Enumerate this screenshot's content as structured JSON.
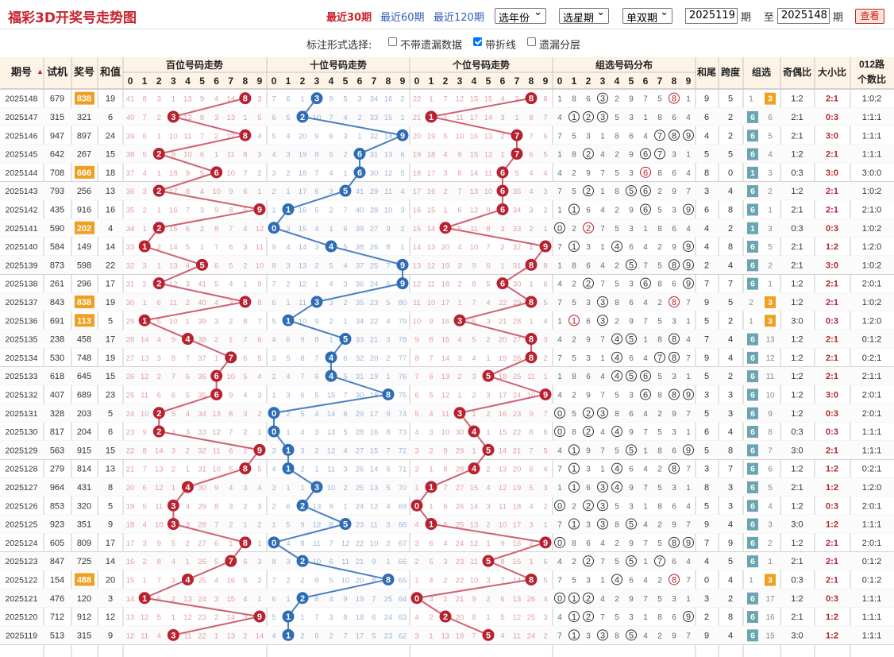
{
  "title": "福彩3D开奖号走势图",
  "quick": {
    "p30": "最近30期",
    "p60": "最近60期",
    "p120": "最近120期"
  },
  "filters": {
    "year": "选年份",
    "week": "选星期",
    "oddeven": "单双期",
    "from": "2025119",
    "to": "2025148",
    "qi": "期",
    "zhi": "至",
    "view": "查看"
  },
  "options": {
    "label": "标注形式选择:",
    "items": [
      {
        "text": "不带遗漏数据",
        "checked": false
      },
      {
        "text": "带折线",
        "checked": true
      },
      {
        "text": "遗漏分层",
        "checked": false
      }
    ]
  },
  "headers": {
    "qihao": "期号",
    "shiji": "试机",
    "jianghao": "奖号",
    "hezhi": "和值",
    "bai": "百位号码走势",
    "shi": "十位号码走势",
    "ge": "个位号码走势",
    "zuxuan": "组选号码分布",
    "hewei": "和尾",
    "kuadu": "跨度",
    "zuxuan2": "组选",
    "jiou": "奇偶比",
    "daxiao": "大小比",
    "lu": "012路",
    "lu2": "个数比"
  },
  "digits": [
    "0",
    "1",
    "2",
    "3",
    "4",
    "5",
    "6",
    "7",
    "8",
    "9"
  ],
  "colors": {
    "red": "#b8212f",
    "blue": "#2e6cb5",
    "teal": "#6aa6b0",
    "orange": "#f0a020",
    "redline": "#d06070",
    "blueline": "#4a7fc0"
  },
  "rows": [
    {
      "q": "2025148",
      "s": "679",
      "n": "838",
      "sum": "19",
      "hw": "9",
      "kd": "5",
      "zt": "3",
      "zs": "1",
      "jo": "1:2",
      "dx": "2:1",
      "lu": "1:0:2",
      "miss": "41 8 3 1 13 9 4 14 - 3|7 6 1 - 9 5 3 34 16 2|22 1 7 12 15 15 4 2 - 8"
    },
    {
      "q": "2025147",
      "s": "315",
      "n": "321",
      "sum": "6",
      "hw": "6",
      "kd": "2",
      "zt": "6",
      "zs": "6",
      "jo": "2:1",
      "dx": "0:3",
      "lu": "1:1:1",
      "miss": "40 7 2 - 12 8 3 13 1 5|6 5 - 10 7 4 2 33 15 1|21 - 1 11 17 14 3 1 8 7"
    },
    {
      "q": "2025146",
      "s": "947",
      "n": "897",
      "sum": "24",
      "hw": "4",
      "kd": "2",
      "zt": "6",
      "zs": "5",
      "jo": "2:1",
      "dx": "3:0",
      "lu": "1:1:1",
      "miss": "39 6 1 10 11 7 2 12 - 4|5 4 20 9 6 3 1 32 14 -|20 19 5 10 16 13 2 - 7 6"
    },
    {
      "q": "2025145",
      "s": "642",
      "n": "267",
      "sum": "15",
      "hw": "5",
      "kd": "5",
      "zt": "6",
      "zs": "4",
      "jo": "1:2",
      "dx": "2:1",
      "lu": "1:1:1",
      "miss": "38 5 - 9 10 6 1 11 8 3|4 3 19 8 5 2 - 31 13 6|19 18 4 9 15 12 1 - 6 5"
    },
    {
      "q": "2025144",
      "s": "708",
      "n": "666",
      "sum": "18",
      "hw": "8",
      "kd": "0",
      "zt": "1",
      "zs": "3",
      "jo": "0:3",
      "dx": "3:0",
      "lu": "3:0:0",
      "miss": "37 4 1 18 9 5 - 10 7 2|3 2 18 7 4 1 - 30 12 5|18 17 3 8 14 11 - 5 4 4"
    },
    {
      "q": "2025143",
      "s": "793",
      "n": "256",
      "sum": "13",
      "hw": "3",
      "kd": "4",
      "zt": "6",
      "zs": "2",
      "jo": "1:2",
      "dx": "2:1",
      "lu": "1:0:2",
      "miss": "36 3 - 17 8 4 10 9 6 1|2 1 17 6 3 - 41 29 11 4|17 16 2 7 13 10 - 35 4 3"
    },
    {
      "q": "2025142",
      "s": "435",
      "n": "916",
      "sum": "16",
      "hw": "6",
      "kd": "8",
      "zt": "6",
      "zs": "1",
      "jo": "2:1",
      "dx": "2:1",
      "lu": "2:1:0",
      "miss": "35 2 1 16 7 3 9 8 5 -|1 - 16 5 2 7 40 28 10 3|16 15 1 6 12 9 - 34 3 2"
    },
    {
      "q": "2025141",
      "s": "590",
      "n": "202",
      "sum": "4",
      "hw": "4",
      "kd": "2",
      "zt": "1",
      "zs": "3",
      "jo": "0:3",
      "dx": "0:3",
      "lu": "1:0:2",
      "miss": "34 1 - 15 6 2 8 7 4 12|- 3 15 4 1 6 39 27 9 2|15 14 - 5 11 8 3 33 2 1"
    },
    {
      "q": "2025140",
      "s": "584",
      "n": "149",
      "sum": "14",
      "hw": "4",
      "kd": "8",
      "zt": "6",
      "zs": "5",
      "jo": "2:1",
      "dx": "1:2",
      "lu": "1:2:0",
      "miss": "33 - 2 14 5 1 7 6 3 11|9 4 14 3 - 5 38 26 8 1|14 13 20 4 10 7 2 32 1 -"
    },
    {
      "q": "2025139",
      "s": "873",
      "n": "598",
      "sum": "22",
      "hw": "2",
      "kd": "4",
      "zt": "6",
      "zs": "2",
      "jo": "2:1",
      "dx": "3:0",
      "lu": "1:0:2",
      "miss": "32 3 1 13 4 - 6 5 2 10|8 3 13 2 5 4 37 25 7 -|13 12 19 3 9 6 1 31 - 8"
    },
    {
      "q": "2025138",
      "s": "261",
      "n": "296",
      "sum": "17",
      "hw": "7",
      "kd": "7",
      "zt": "6",
      "zs": "1",
      "jo": "1:2",
      "dx": "2:1",
      "lu": "2:0:1",
      "miss": "31 2 - 12 3 41 5 4 1 9|7 2 12 1 4 3 36 24 6 -|12 11 18 2 8 5 - 30 1 6"
    },
    {
      "q": "2025137",
      "s": "843",
      "n": "838",
      "sum": "19",
      "hw": "9",
      "kd": "5",
      "zt": "3",
      "zs": "2",
      "jo": "1:2",
      "dx": "2:1",
      "lu": "1:0:2",
      "miss": "30 1 6 11 2 40 4 3 - 8|6 1 11 - 3 2 35 23 5 80|11 10 17 1 7 4 22 29 - 5"
    },
    {
      "q": "2025136",
      "s": "691",
      "n": "113",
      "sum": "5",
      "hw": "5",
      "kd": "2",
      "zt": "3",
      "zs": "1",
      "jo": "3:0",
      "dx": "0:3",
      "lu": "1:2:0",
      "miss": "29 - 5 10 1 39 3 2 8 7|5 - 10 9 2 1 34 22 4 79|10 9 16 - 6 3 21 28 1 4"
    },
    {
      "q": "2025135",
      "s": "238",
      "n": "458",
      "sum": "17",
      "hw": "7",
      "kd": "4",
      "zt": "6",
      "zs": "13",
      "jo": "1:2",
      "dx": "2:1",
      "lu": "0:1:2",
      "miss": "28 14 4 9 - 38 2 1 7 6|4 6 9 8 1 - 33 21 3 78|9 8 15 4 5 2 20 27 - 3"
    },
    {
      "q": "2025134",
      "s": "530",
      "n": "748",
      "sum": "19",
      "hw": "9",
      "kd": "4",
      "zt": "6",
      "zs": "12",
      "jo": "1:2",
      "dx": "2:1",
      "lu": "0:2:1",
      "miss": "27 13 3 8 7 37 1 - 6 5|3 5 8 7 - 6 32 20 2 77|8 7 14 3 4 1 19 26 - 2"
    },
    {
      "q": "2025133",
      "s": "618",
      "n": "645",
      "sum": "15",
      "hw": "5",
      "kd": "2",
      "zt": "6",
      "zs": "11",
      "jo": "1:2",
      "dx": "2:1",
      "lu": "2:1:1",
      "miss": "26 12 2 7 6 36 - 10 5 4|2 4 7 6 - 5 31 19 1 76|7 6 13 2 3 - 18 25 11 1"
    },
    {
      "q": "2025132",
      "s": "407",
      "n": "689",
      "sum": "23",
      "hw": "3",
      "kd": "3",
      "zt": "6",
      "zs": "10",
      "jo": "1:2",
      "dx": "3:0",
      "lu": "2:0:1",
      "miss": "25 11 6 6 5 35 - 9 4 3|1 3 6 5 15 7 30 18 - 75|6 5 12 1 2 3 17 24 10 -"
    },
    {
      "q": "2025131",
      "s": "328",
      "n": "203",
      "sum": "5",
      "hw": "5",
      "kd": "3",
      "zt": "6",
      "zs": "9",
      "jo": "1:2",
      "dx": "0:3",
      "lu": "2:0:1",
      "miss": "24 10 - 5 4 34 13 8 3 2|- 2 5 4 14 6 29 17 9 74|5 4 11 - 1 2 16 23 9 7"
    },
    {
      "q": "2025130",
      "s": "817",
      "n": "204",
      "sum": "6",
      "hw": "6",
      "kd": "4",
      "zt": "6",
      "zs": "8",
      "jo": "0:3",
      "dx": "0:3",
      "lu": "1:1:1",
      "miss": "23 9 - 4 3 33 12 7 2 1|- 1 4 3 13 5 28 16 8 73|4 3 10 30 - 1 15 22 8 6"
    },
    {
      "q": "2025129",
      "s": "563",
      "n": "915",
      "sum": "15",
      "hw": "5",
      "kd": "8",
      "zt": "6",
      "zs": "7",
      "jo": "3:0",
      "dx": "2:1",
      "lu": "1:1:1",
      "miss": "22 8 14 3 2 32 11 6 1 -|3 - 3 2 12 4 27 15 7 72|3 2 9 29 1 - 14 21 7 5"
    },
    {
      "q": "2025128",
      "s": "279",
      "n": "814",
      "sum": "13",
      "hw": "3",
      "kd": "7",
      "zt": "6",
      "zs": "6",
      "jo": "1:2",
      "dx": "1:2",
      "lu": "0:2:1",
      "miss": "21 7 13 2 1 31 10 5 - 5|4 - 2 1 11 3 26 14 6 71|2 1 8 28 - 2 13 20 6 4"
    },
    {
      "q": "2025127",
      "s": "964",
      "n": "431",
      "sum": "8",
      "hw": "8",
      "kd": "3",
      "zt": "6",
      "zs": "5",
      "jo": "2:1",
      "dx": "1:2",
      "lu": "1:2:0",
      "miss": "20 6 12 1 - 30 9 4 3 4|3 1 1 - 10 2 25 13 5 70|1 - 7 27 15 4 12 19 5 3"
    },
    {
      "q": "2025126",
      "s": "853",
      "n": "320",
      "sum": "5",
      "hw": "5",
      "kd": "3",
      "zt": "6",
      "zs": "4",
      "jo": "1:2",
      "dx": "0:3",
      "lu": "2:0:1",
      "miss": "19 5 11 - 4 29 8 3 2 3|2 6 - 13 9 1 24 12 4 69|- 1 6 26 14 3 11 18 4 2"
    },
    {
      "q": "2025125",
      "s": "923",
      "n": "351",
      "sum": "9",
      "hw": "9",
      "kd": "4",
      "zt": "6",
      "zs": "3",
      "jo": "3:0",
      "dx": "1:2",
      "lu": "1:1:1",
      "miss": "18 4 10 - 3 28 7 2 1 2|1 5 9 12 8 - 23 11 3 68|4 - 5 25 13 2 10 17 3 1"
    },
    {
      "q": "2025124",
      "s": "605",
      "n": "809",
      "sum": "17",
      "hw": "7",
      "kd": "9",
      "zt": "6",
      "zs": "2",
      "jo": "1:2",
      "dx": "2:1",
      "lu": "2:0:1",
      "miss": "17 3 9 5 2 27 6 1 - 1|- 4 8 11 7 12 22 10 2 67|3 6 4 24 12 1 9 16 2 -"
    },
    {
      "q": "2025123",
      "s": "847",
      "n": "725",
      "sum": "14",
      "hw": "4",
      "kd": "5",
      "zt": "6",
      "zs": "1",
      "jo": "2:1",
      "dx": "2:1",
      "lu": "0:1:2",
      "miss": "16 2 8 4 1 26 5 - 6 3|8 3 - 10 6 11 21 9 1 66|2 5 3 23 11 - 8 15 1 6"
    },
    {
      "q": "2025122",
      "s": "154",
      "n": "488",
      "sum": "20",
      "hw": "0",
      "kd": "4",
      "zt": "3",
      "zs": "1",
      "jo": "0:3",
      "dx": "2:1",
      "lu": "0:1:2",
      "miss": "15 1 7 3 - 25 4 16 5 2|7 2 2 9 5 10 20 8 - 65|1 4 2 22 10 3 7 14 - 5"
    },
    {
      "q": "2025121",
      "s": "476",
      "n": "120",
      "sum": "3",
      "hw": "3",
      "kd": "2",
      "zt": "6",
      "zs": "17",
      "jo": "1:2",
      "dx": "0:3",
      "lu": "1:1:1",
      "miss": "14 - 6 2 13 24 3 15 4 1|6 1 - 8 4 9 19 7 25 64|- 3 1 21 9 2 6 13 26 4"
    },
    {
      "q": "2025120",
      "s": "712",
      "n": "912",
      "sum": "12",
      "hw": "2",
      "kd": "8",
      "zt": "6",
      "zs": "16",
      "jo": "2:1",
      "dx": "1:2",
      "lu": "1:1:1",
      "miss": "13 12 5 1 12 23 2 14 3 -|5 - 1 7 3 8 18 6 24 63|4 2 - 20 8 1 5 12 25 3"
    },
    {
      "q": "2025119",
      "s": "513",
      "n": "315",
      "sum": "9",
      "hw": "9",
      "kd": "4",
      "zt": "6",
      "zs": "15",
      "jo": "3:0",
      "dx": "1:2",
      "lu": "1:1:1",
      "miss": "12 11 4 - 11 22 1 13 2 14|4 - 2 6 2 7 17 5 23 62|3 1 13 19 7 - 4 11 24 2"
    }
  ]
}
